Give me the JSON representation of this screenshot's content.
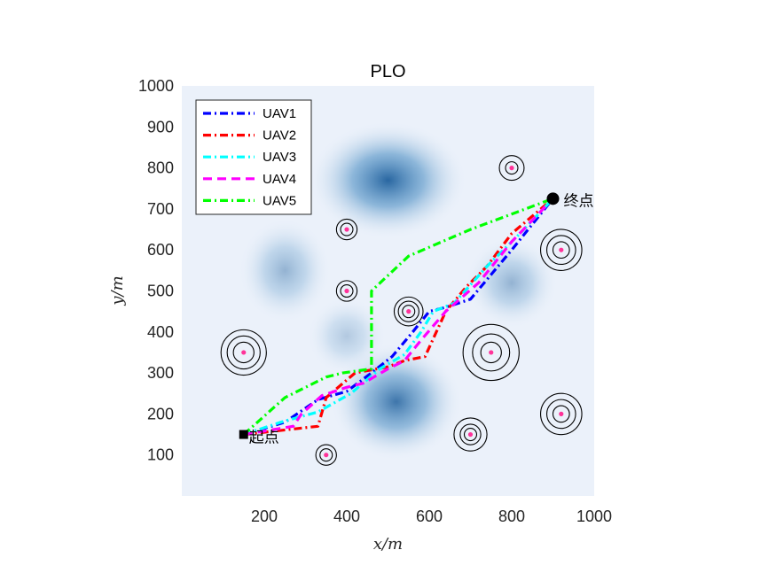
{
  "chart_data": {
    "type": "line",
    "title": "PLO",
    "xlabel": "x/m",
    "ylabel": "y/m",
    "xlim": [
      0,
      1000
    ],
    "ylim": [
      0,
      1000
    ],
    "xticks": [
      200,
      400,
      600,
      800,
      1000
    ],
    "yticks": [
      100,
      200,
      300,
      400,
      500,
      600,
      700,
      800,
      900,
      1000
    ],
    "grid": false,
    "legend_position": "top-left",
    "start": {
      "label": "起点",
      "x": 150,
      "y": 150
    },
    "end": {
      "label": "终点",
      "x": 900,
      "y": 725
    },
    "series": [
      {
        "name": "UAV1",
        "color": "#0000ff",
        "dash": "dashdot",
        "x": [
          150,
          250,
          330,
          400,
          460,
          510,
          560,
          600,
          640,
          700,
          750,
          800,
          900
        ],
        "y": [
          150,
          180,
          235,
          255,
          300,
          340,
          400,
          450,
          460,
          480,
          540,
          600,
          725
        ]
      },
      {
        "name": "UAV2",
        "color": "#ff0000",
        "dash": "dashdot",
        "x": [
          150,
          330,
          350,
          420,
          500,
          540,
          590,
          640,
          690,
          740,
          800,
          900
        ],
        "y": [
          150,
          170,
          240,
          300,
          315,
          330,
          340,
          450,
          510,
          560,
          640,
          725
        ]
      },
      {
        "name": "UAV3",
        "color": "#00ffff",
        "dash": "dashdot",
        "x": [
          150,
          240,
          330,
          410,
          480,
          540,
          580,
          610,
          660,
          740,
          820,
          900
        ],
        "y": [
          150,
          180,
          205,
          250,
          310,
          345,
          400,
          450,
          470,
          560,
          640,
          725
        ]
      },
      {
        "name": "UAV4",
        "color": "#ff00ff",
        "dash": "dash",
        "x": [
          150,
          270,
          290,
          340,
          400,
          440,
          500,
          540,
          580,
          640,
          720,
          800,
          900
        ],
        "y": [
          150,
          170,
          200,
          245,
          265,
          275,
          310,
          330,
          380,
          450,
          520,
          620,
          725
        ]
      },
      {
        "name": "UAV5",
        "color": "#00ff00",
        "dash": "dashdot",
        "x": [
          150,
          250,
          350,
          390,
          460,
          460,
          550,
          700,
          900
        ],
        "y": [
          150,
          240,
          290,
          300,
          310,
          500,
          585,
          650,
          725
        ]
      }
    ],
    "threats": [
      {
        "x": 150,
        "y": 350,
        "rings": [
          25,
          40,
          55
        ]
      },
      {
        "x": 350,
        "y": 100,
        "rings": [
          15,
          25
        ]
      },
      {
        "x": 400,
        "y": 650,
        "rings": [
          15,
          25
        ]
      },
      {
        "x": 400,
        "y": 500,
        "rings": [
          15,
          25
        ]
      },
      {
        "x": 550,
        "y": 450,
        "rings": [
          15,
          25,
          35
        ]
      },
      {
        "x": 700,
        "y": 150,
        "rings": [
          15,
          25,
          40
        ]
      },
      {
        "x": 750,
        "y": 350,
        "rings": [
          25,
          45,
          68
        ]
      },
      {
        "x": 800,
        "y": 800,
        "rings": [
          15,
          30
        ]
      },
      {
        "x": 920,
        "y": 600,
        "rings": [
          20,
          35,
          50
        ]
      },
      {
        "x": 920,
        "y": 200,
        "rings": [
          20,
          35,
          50
        ]
      }
    ],
    "terrain_peaks": [
      {
        "x": 500,
        "y": 770,
        "sx": 120,
        "sy": 90,
        "h": 1.0
      },
      {
        "x": 520,
        "y": 230,
        "sx": 100,
        "sy": 90,
        "h": 0.9
      },
      {
        "x": 250,
        "y": 550,
        "sx": 70,
        "sy": 80,
        "h": 0.45
      },
      {
        "x": 800,
        "y": 520,
        "sx": 70,
        "sy": 70,
        "h": 0.45
      },
      {
        "x": 400,
        "y": 390,
        "sx": 60,
        "sy": 60,
        "h": 0.3
      }
    ]
  }
}
